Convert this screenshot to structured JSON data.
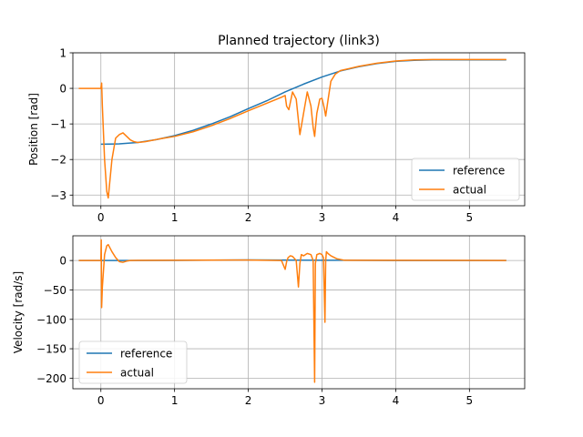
{
  "chart_data": [
    {
      "type": "line",
      "title": "Planned trajectory (link3)",
      "xlabel": "",
      "ylabel": "Position [rad]",
      "xlim": [
        -0.38,
        5.75
      ],
      "ylim": [
        -3.3,
        1.0
      ],
      "xticks": [
        0,
        1,
        2,
        3,
        4,
        5
      ],
      "yticks": [
        -3,
        -2,
        -1,
        0,
        1
      ],
      "xtick_labels": [
        "0",
        "1",
        "2",
        "3",
        "4",
        "5"
      ],
      "ytick_labels": [
        "−3",
        "−2",
        "−1",
        "0",
        "1"
      ],
      "grid": true,
      "legend_position": "lower right",
      "series": [
        {
          "name": "reference",
          "color": "#1f77b4",
          "x": [
            0.0,
            0.25,
            0.5,
            0.75,
            1.0,
            1.25,
            1.5,
            1.75,
            2.0,
            2.25,
            2.5,
            2.75,
            3.0,
            3.25,
            3.5,
            3.75,
            4.0,
            4.25,
            4.5,
            5.5
          ],
          "y": [
            -1.57,
            -1.56,
            -1.52,
            -1.44,
            -1.33,
            -1.18,
            -1.0,
            -0.8,
            -0.57,
            -0.35,
            -0.1,
            0.12,
            0.32,
            0.49,
            0.61,
            0.7,
            0.76,
            0.79,
            0.8,
            0.8
          ]
        },
        {
          "name": "actual",
          "color": "#ff7f0e",
          "x": [
            -0.3,
            0.0,
            0.01,
            0.02,
            0.05,
            0.08,
            0.1,
            0.15,
            0.2,
            0.25,
            0.3,
            0.35,
            0.4,
            0.45,
            0.5,
            0.6,
            0.8,
            1.0,
            1.25,
            1.5,
            1.75,
            2.0,
            2.25,
            2.45,
            2.5,
            2.52,
            2.55,
            2.6,
            2.65,
            2.68,
            2.7,
            2.75,
            2.8,
            2.85,
            2.88,
            2.9,
            2.93,
            2.97,
            3.0,
            3.03,
            3.05,
            3.08,
            3.12,
            3.18,
            3.25,
            3.5,
            3.75,
            4.0,
            4.25,
            4.5,
            5.5
          ],
          "y": [
            0.0,
            0.0,
            0.15,
            -0.5,
            -2.0,
            -2.9,
            -3.08,
            -2.0,
            -1.4,
            -1.3,
            -1.25,
            -1.35,
            -1.45,
            -1.5,
            -1.52,
            -1.5,
            -1.42,
            -1.35,
            -1.22,
            -1.05,
            -0.85,
            -0.63,
            -0.42,
            -0.25,
            -0.2,
            -0.5,
            -0.6,
            -0.1,
            -0.3,
            -0.9,
            -1.3,
            -0.7,
            -0.1,
            -0.5,
            -1.1,
            -1.35,
            -0.7,
            -0.3,
            -0.28,
            -0.55,
            -0.78,
            -0.35,
            0.2,
            0.4,
            0.5,
            0.62,
            0.71,
            0.77,
            0.8,
            0.81,
            0.81
          ]
        }
      ]
    },
    {
      "type": "line",
      "title": "",
      "xlabel": "",
      "ylabel": "Velocity [rad/s]",
      "xlim": [
        -0.38,
        5.75
      ],
      "ylim": [
        -218,
        42
      ],
      "xticks": [
        0,
        1,
        2,
        3,
        4,
        5
      ],
      "yticks": [
        -200,
        -150,
        -100,
        -50,
        0
      ],
      "xtick_labels": [
        "0",
        "1",
        "2",
        "3",
        "4",
        "5"
      ],
      "ytick_labels": [
        "−200",
        "−150",
        "−100",
        "−50",
        "0"
      ],
      "grid": true,
      "legend_position": "lower left",
      "series": [
        {
          "name": "reference",
          "color": "#1f77b4",
          "x": [
            -0.3,
            0.0,
            1.0,
            2.0,
            3.0,
            4.0,
            5.5
          ],
          "y": [
            0.0,
            0.0,
            0.3,
            0.9,
            0.5,
            0.1,
            0.0
          ]
        },
        {
          "name": "actual",
          "color": "#ff7f0e",
          "x": [
            -0.3,
            0.0,
            0.005,
            0.01,
            0.02,
            0.05,
            0.08,
            0.1,
            0.15,
            0.2,
            0.25,
            0.3,
            0.35,
            0.4,
            0.5,
            1.0,
            2.0,
            2.45,
            2.5,
            2.52,
            2.54,
            2.57,
            2.6,
            2.65,
            2.68,
            2.7,
            2.72,
            2.75,
            2.8,
            2.85,
            2.88,
            2.9,
            2.91,
            2.93,
            2.97,
            3.0,
            3.02,
            3.04,
            3.05,
            3.06,
            3.08,
            3.12,
            3.2,
            3.3,
            5.5
          ],
          "y": [
            0.0,
            0.0,
            35,
            -80,
            -45,
            10,
            25,
            27,
            15,
            5,
            -2,
            -3,
            -1,
            0,
            0.3,
            0.5,
            0.8,
            0.0,
            -15,
            -2,
            5,
            8,
            7,
            0,
            -45,
            -5,
            10,
            8,
            12,
            10,
            0,
            -207,
            -5,
            10,
            12,
            10,
            5,
            -105,
            0,
            15,
            12,
            8,
            3,
            0.5,
            0.0
          ]
        }
      ]
    }
  ]
}
